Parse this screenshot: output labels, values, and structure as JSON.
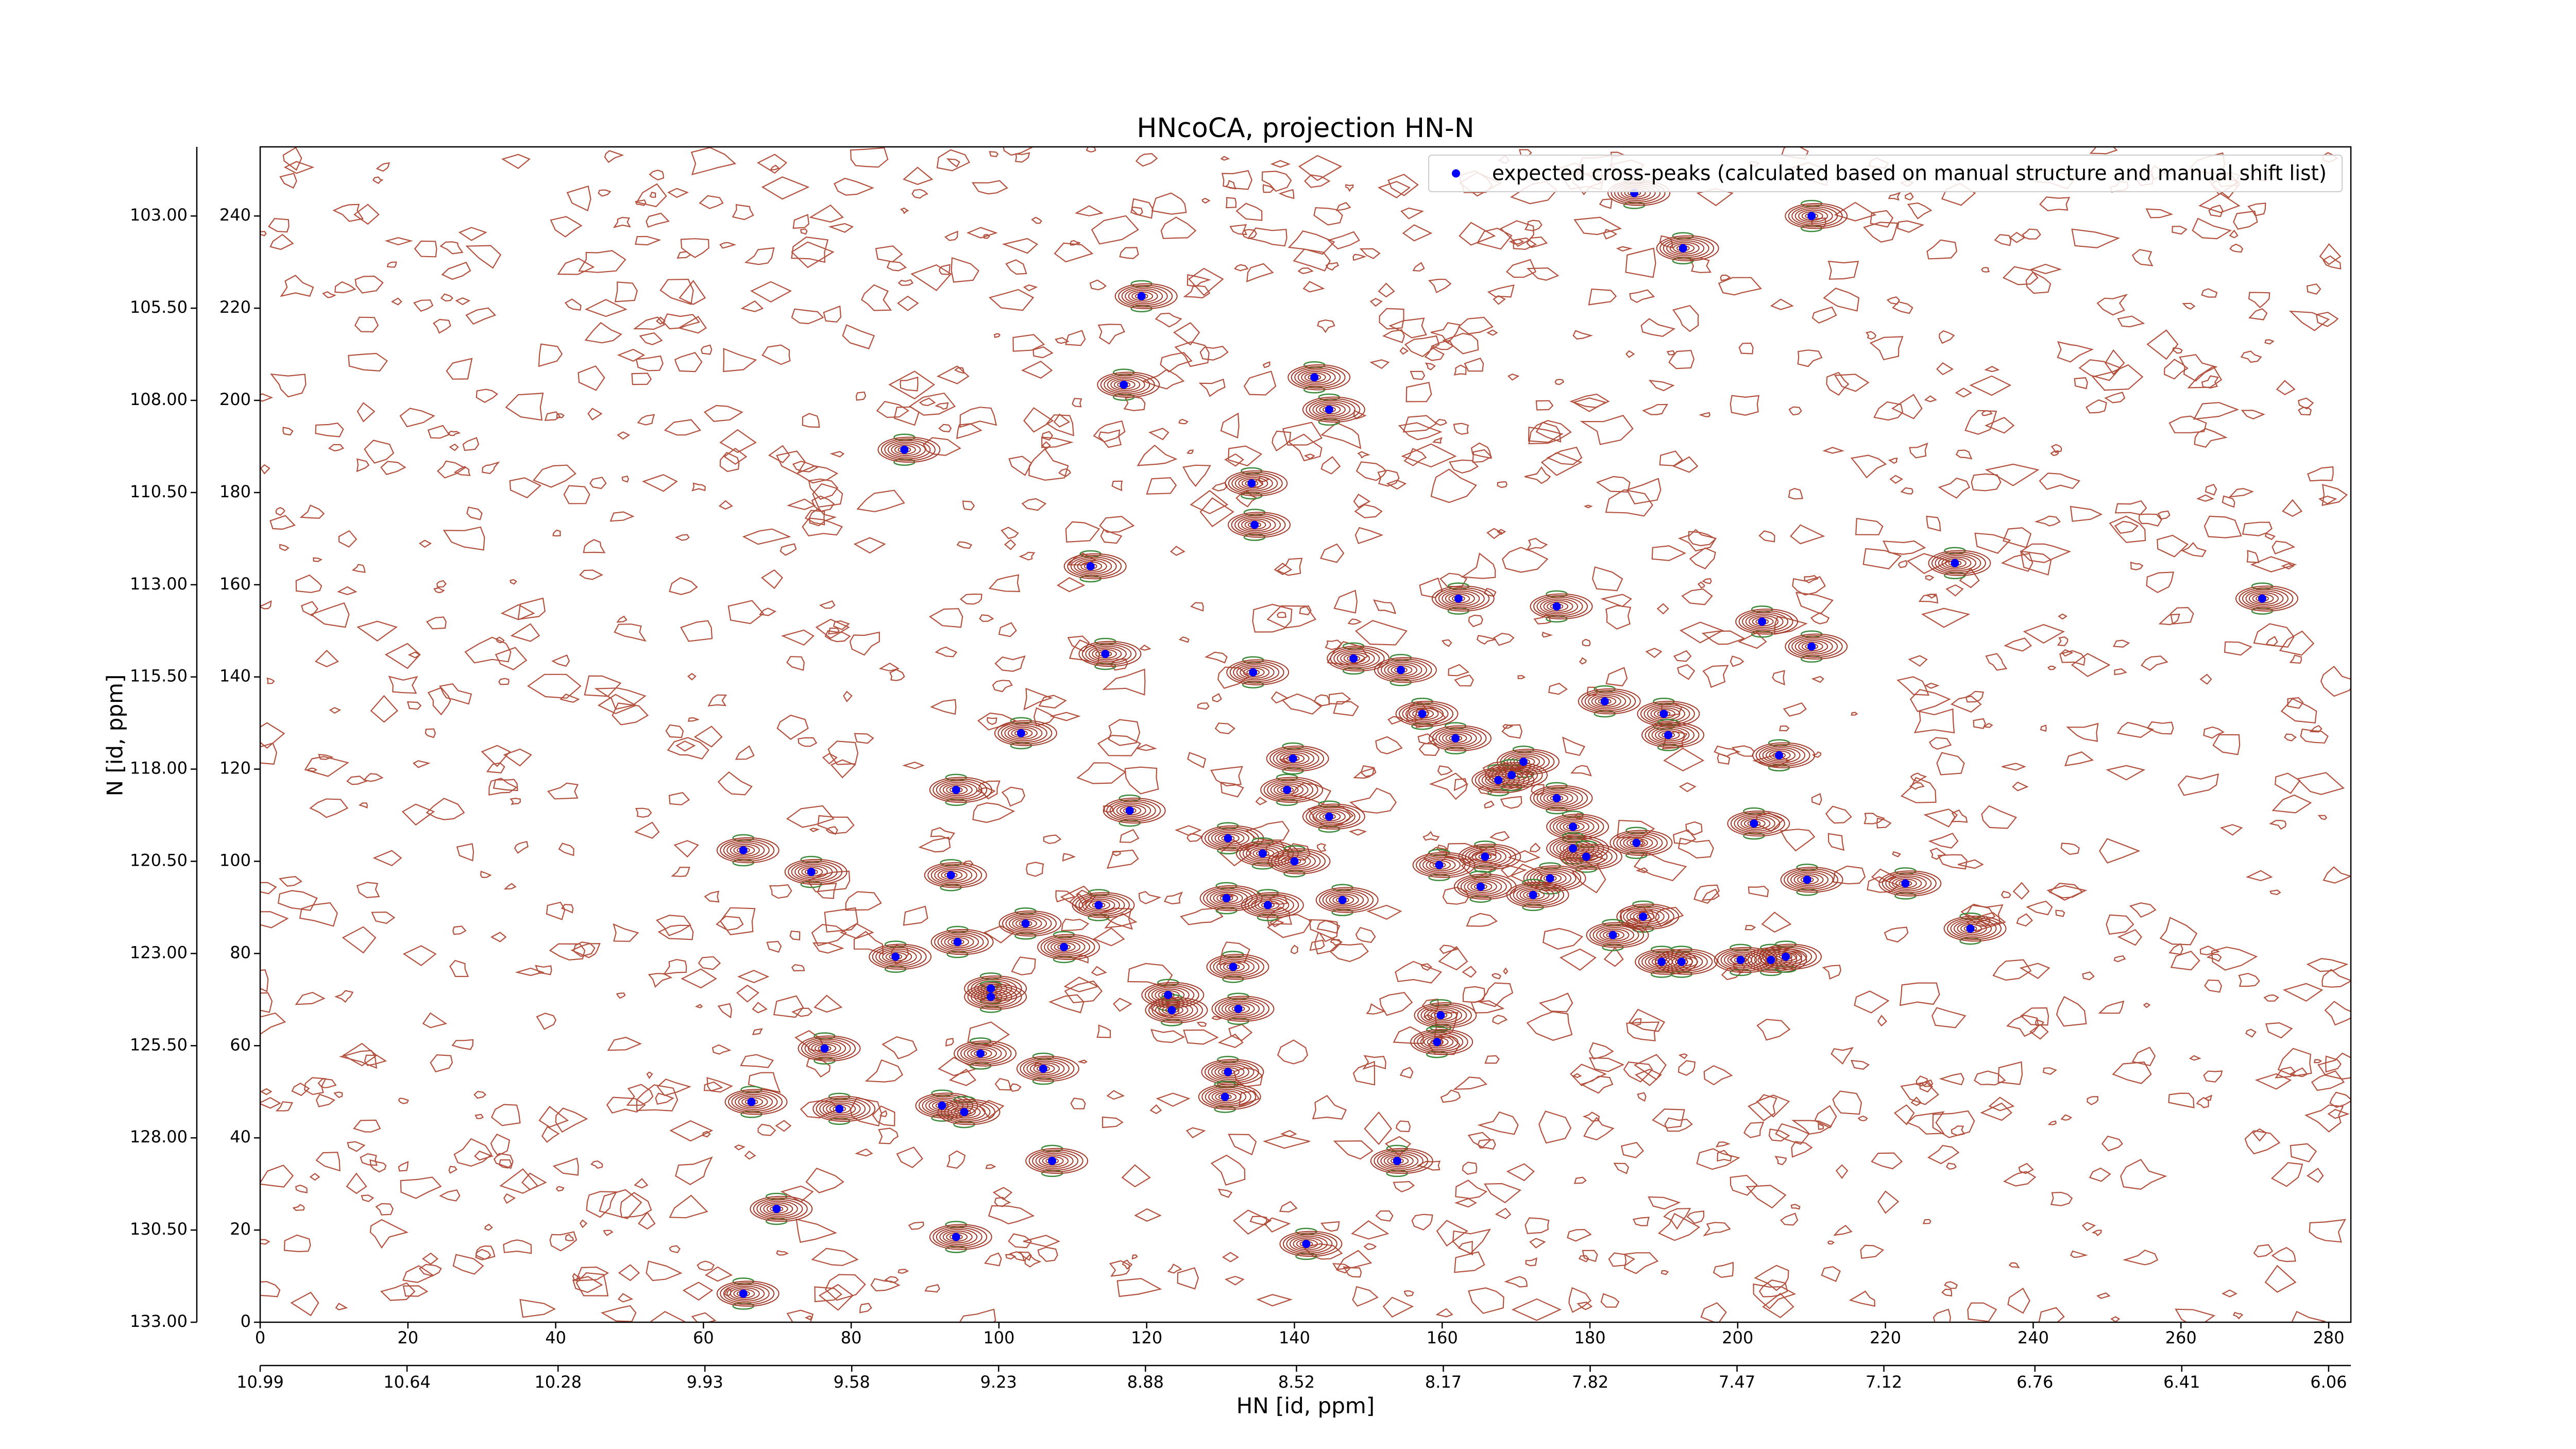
{
  "chart_data": {
    "type": "scatter",
    "title": "HNcoCA, projection HN-N",
    "xlabel": "HN [id, ppm]",
    "ylabel": "N [id, ppm]",
    "legend": "upper right",
    "xlim": [
      0,
      283
    ],
    "ylim": [
      0,
      255
    ],
    "xticks": [
      0,
      20,
      40,
      60,
      80,
      100,
      120,
      140,
      160,
      180,
      200,
      220,
      240,
      260,
      280
    ],
    "yticks": [
      0,
      20,
      40,
      60,
      80,
      100,
      120,
      140,
      160,
      180,
      200,
      220,
      240
    ],
    "x2lim": [
      10.99,
      6.007
    ],
    "x2ticks": [
      10.99,
      10.64,
      10.28,
      9.93,
      9.58,
      9.23,
      8.88,
      8.52,
      8.17,
      7.82,
      7.47,
      7.12,
      6.76,
      6.41,
      6.06
    ],
    "y2lim": [
      133,
      101.125
    ],
    "y2ticks": [
      {
        "value": 103,
        "label": "103.00"
      },
      {
        "value": 105.5,
        "label": "105.50"
      },
      {
        "value": 108,
        "label": "108.00"
      },
      {
        "value": 110.5,
        "label": "110.50"
      },
      {
        "value": 113,
        "label": "113.00"
      },
      {
        "value": 115.5,
        "label": "115.50"
      },
      {
        "value": 118,
        "label": "118.00"
      },
      {
        "value": 120.5,
        "label": "120.50"
      },
      {
        "value": 123,
        "label": "123.00"
      },
      {
        "value": 125.5,
        "label": "125.50"
      },
      {
        "value": 128,
        "label": "128.00"
      },
      {
        "value": 130.5,
        "label": "130.50"
      },
      {
        "value": 133,
        "label": "133.00"
      }
    ],
    "series": [
      {
        "name": "expected cross-peaks (calculated based on manual structure and manual shift list)",
        "color": "#0000ff",
        "x": [
          186,
          210,
          192.6,
          119.3,
          116.9,
          142.7,
          144.7,
          87.2,
          134.2,
          134.6,
          112.4,
          229.4,
          162.2,
          175.5,
          203.3,
          271,
          210,
          114.4,
          134.4,
          148,
          154.4,
          157.3,
          182,
          190,
          190.6,
          103,
          161.8,
          205.6,
          139.8,
          171,
          167.6,
          169.4,
          94.2,
          139,
          117.7,
          175.5,
          144.7,
          202.2,
          177.7,
          131,
          177.7,
          186.3,
          65.4,
          135.7,
          179.5,
          140,
          165.8,
          159.6,
          74.6,
          93.5,
          174.6,
          165.2,
          209.4,
          222.7,
          172.3,
          130.8,
          136.4,
          146.5,
          113.5,
          103.6,
          187.2,
          231.5,
          183.1,
          94.4,
          108.8,
          86,
          189.7,
          192.4,
          200.4,
          204.5,
          206.5,
          131.7,
          98.9,
          98.9,
          122.9,
          123.4,
          132.4,
          159.8,
          159.3,
          76.4,
          97.5,
          106,
          131,
          66.5,
          92.3,
          78.4,
          95.3,
          130.6,
          107.2,
          153.9,
          69.9,
          94.2,
          141.6,
          65.4
        ],
        "y": [
          245,
          240,
          233,
          222.6,
          203.4,
          205,
          198,
          189.3,
          182,
          173,
          164,
          164.7,
          157,
          155.3,
          152,
          157,
          146.6,
          145,
          141,
          144,
          141.5,
          132,
          134.7,
          132,
          127.4,
          127.8,
          126.7,
          123,
          122.3,
          121.6,
          117.6,
          118.7,
          115.5,
          115.5,
          111,
          113.7,
          109.7,
          108.2,
          107.5,
          105,
          102.8,
          104,
          102.4,
          101.7,
          101,
          100,
          101,
          99.2,
          97.7,
          97,
          96.3,
          94.5,
          96,
          95.2,
          92.7,
          92,
          90.5,
          91.6,
          90.5,
          86.5,
          88,
          85.4,
          84,
          82.5,
          81.4,
          79.3,
          78.2,
          78.2,
          78.6,
          78.6,
          79.3,
          77.1,
          72.4,
          70.6,
          71,
          67.7,
          68,
          66.6,
          60.8,
          59.4,
          58.3,
          55,
          54.3,
          47.8,
          47,
          46.3,
          45.6,
          48.9,
          35,
          35,
          24.6,
          18.5,
          17,
          6.2
        ]
      }
    ]
  }
}
